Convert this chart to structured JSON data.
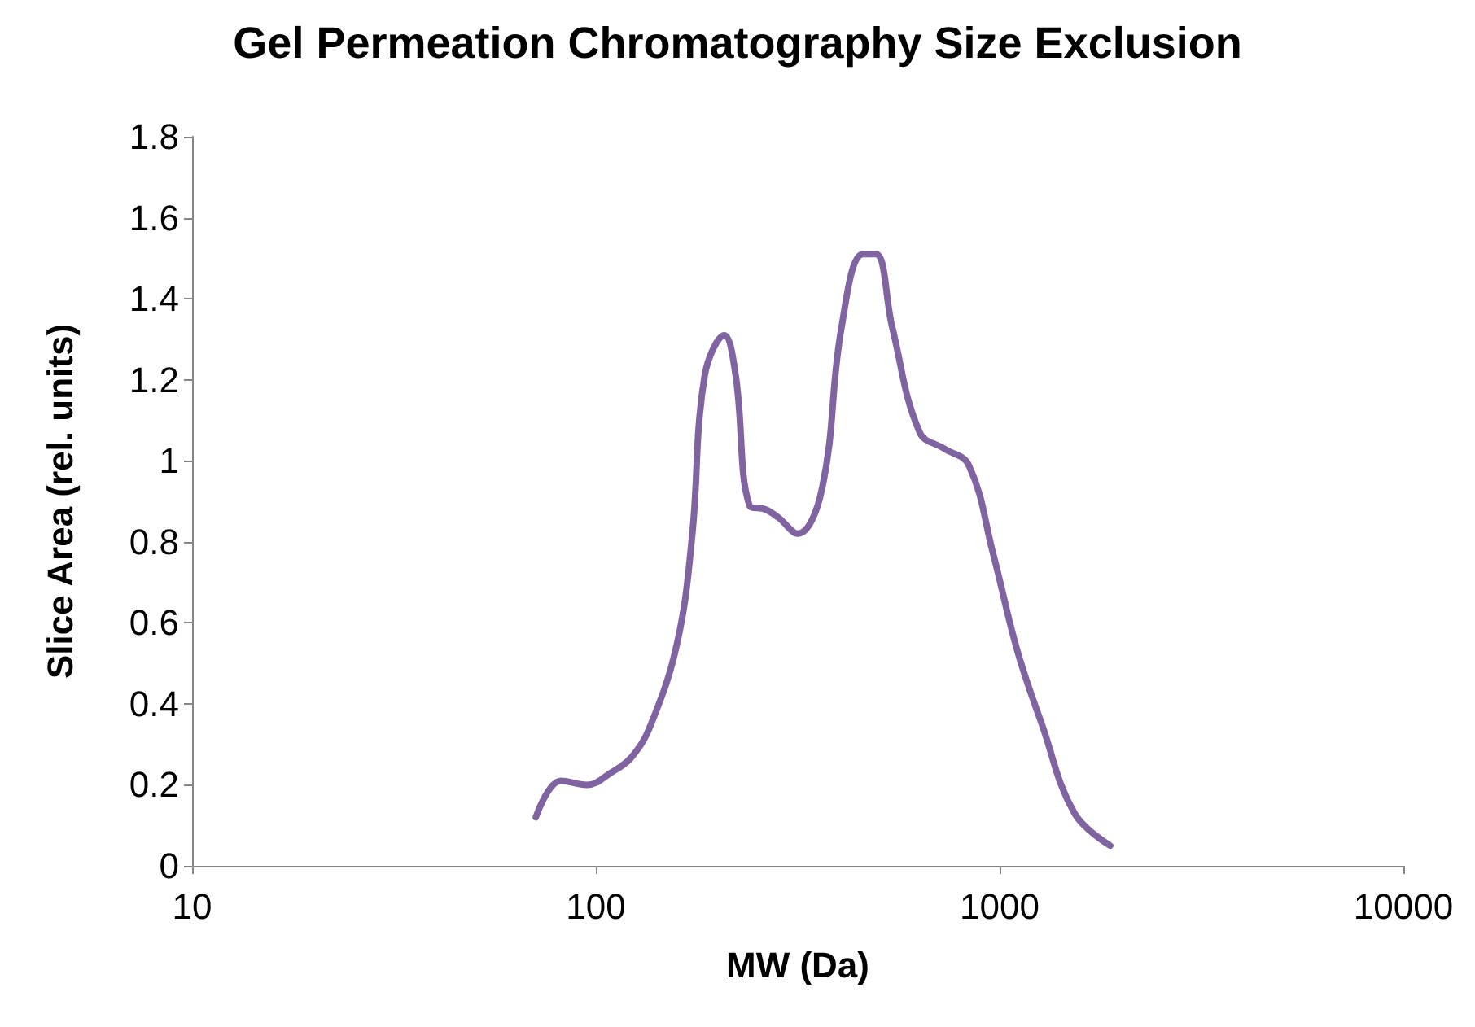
{
  "chart_data": {
    "type": "line",
    "title": "Gel Permeation Chromatography Size Exclusion",
    "xlabel": "MW (Da)",
    "ylabel": "Slice Area (rel. units)",
    "log": "x",
    "xlim": [
      10,
      10000
    ],
    "xticks": [
      10,
      100,
      1000,
      10000
    ],
    "ylim": [
      0,
      1.8
    ],
    "yticks": [
      0,
      0.2,
      0.4,
      0.6,
      0.8,
      1,
      1.2,
      1.4,
      1.6,
      1.8
    ],
    "grid": false,
    "marker": "none",
    "line_style": "solid",
    "x": [
      71,
      82,
      95,
      109,
      123,
      137,
      159,
      173,
      186,
      208,
      222,
      240,
      263,
      283,
      316,
      363,
      406,
      459,
      494,
      542,
      634,
      729,
      838,
      964,
      1107,
      1272,
      1532,
      1879
    ],
    "series": [
      {
        "color": "#8064a2",
        "values": [
          0.12,
          0.21,
          0.2,
          0.23,
          0.27,
          0.35,
          0.55,
          0.81,
          1.21,
          1.31,
          1.21,
          0.89,
          0.88,
          0.86,
          0.82,
          0.93,
          1.33,
          1.51,
          1.51,
          1.33,
          1.07,
          1.03,
          0.99,
          0.77,
          0.53,
          0.35,
          0.13,
          0.05
        ]
      }
    ]
  }
}
